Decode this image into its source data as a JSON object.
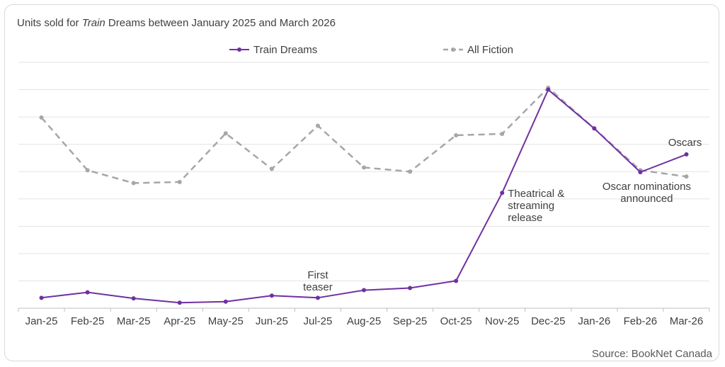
{
  "title": {
    "prefix": "Units sold for ",
    "italic": "Train",
    "suffix": " Dreams between January 2025 and March 2026"
  },
  "source": "Source: BookNet Canada",
  "chart_data": {
    "type": "line",
    "categories": [
      "Jan-25",
      "Feb-25",
      "Mar-25",
      "Apr-25",
      "May-25",
      "Jun-25",
      "Jul-25",
      "Aug-25",
      "Sep-25",
      "Oct-25",
      "Nov-25",
      "Dec-25",
      "Jan-26",
      "Feb-26",
      "Mar-26"
    ],
    "ylim": [
      0,
      9
    ],
    "grid": true,
    "y_axis_labels_shown": false,
    "legend_position": "top",
    "series": [
      {
        "name": "Train Dreams",
        "color": "#7030a0",
        "dash": "solid",
        "values": [
          0.38,
          0.58,
          0.36,
          0.2,
          0.24,
          0.46,
          0.38,
          0.66,
          0.74,
          1.0,
          4.22,
          8.0,
          6.58,
          4.98,
          5.63
        ]
      },
      {
        "name": "All Fiction",
        "color": "#a6a6a6",
        "dash": "dashed",
        "values": [
          6.98,
          5.05,
          4.58,
          4.62,
          6.4,
          5.1,
          6.68,
          5.15,
          5.0,
          6.33,
          6.38,
          8.07,
          6.58,
          5.05,
          4.82
        ]
      }
    ],
    "annotations": [
      {
        "category_index": 6,
        "lines": [
          "First",
          "teaser"
        ]
      },
      {
        "category_index": 10,
        "lines": [
          "Theatrical &",
          "streaming",
          "release"
        ]
      },
      {
        "category_index": 13,
        "lines": [
          "Oscar nominations",
          "announced"
        ]
      },
      {
        "category_index": 14,
        "lines": [
          "Oscars"
        ]
      }
    ]
  }
}
